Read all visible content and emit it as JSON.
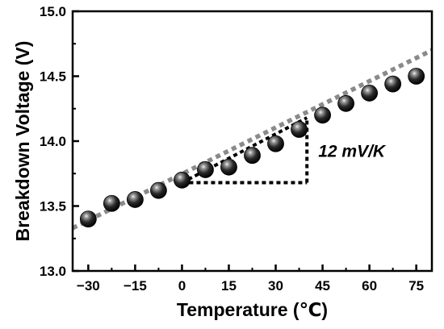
{
  "chart_data": {
    "type": "scatter",
    "title": "",
    "xlabel": "Temperature (℃)",
    "ylabel": "Breakdown Voltage (V)",
    "xlim": [
      -35,
      80
    ],
    "ylim": [
      13.0,
      15.0
    ],
    "x_ticks": [
      -30,
      -15,
      0,
      15,
      30,
      45,
      60,
      75
    ],
    "x_tick_labels": [
      "−30",
      "−15",
      "0",
      "15",
      "30",
      "45",
      "60",
      "75"
    ],
    "y_ticks": [
      13.0,
      13.5,
      14.0,
      14.5,
      15.0
    ],
    "y_tick_labels": [
      "13.0",
      "13.5",
      "14.0",
      "14.5",
      "15.0"
    ],
    "grid": false,
    "series": [
      {
        "type": "scatter",
        "x": [
          -30,
          -22.5,
          -15,
          -7.5,
          0,
          7.5,
          15,
          22.5,
          30,
          37.5,
          45,
          52.5,
          60,
          67.5,
          75
        ],
        "y": [
          13.4,
          13.52,
          13.55,
          13.62,
          13.7,
          13.78,
          13.8,
          13.89,
          13.98,
          14.09,
          14.2,
          14.29,
          14.37,
          14.44,
          14.5
        ],
        "marker_color": "#000000"
      },
      {
        "type": "line",
        "style": "dotted",
        "color": "#8a8a8a",
        "x": [
          -35,
          80
        ],
        "y": [
          13.33,
          14.7
        ]
      }
    ],
    "annotation": {
      "text": "12 mV/K",
      "triangle": {
        "corner_x": 40,
        "corner_y": 13.68,
        "start_x": 0,
        "top_y": 14.18
      }
    }
  }
}
